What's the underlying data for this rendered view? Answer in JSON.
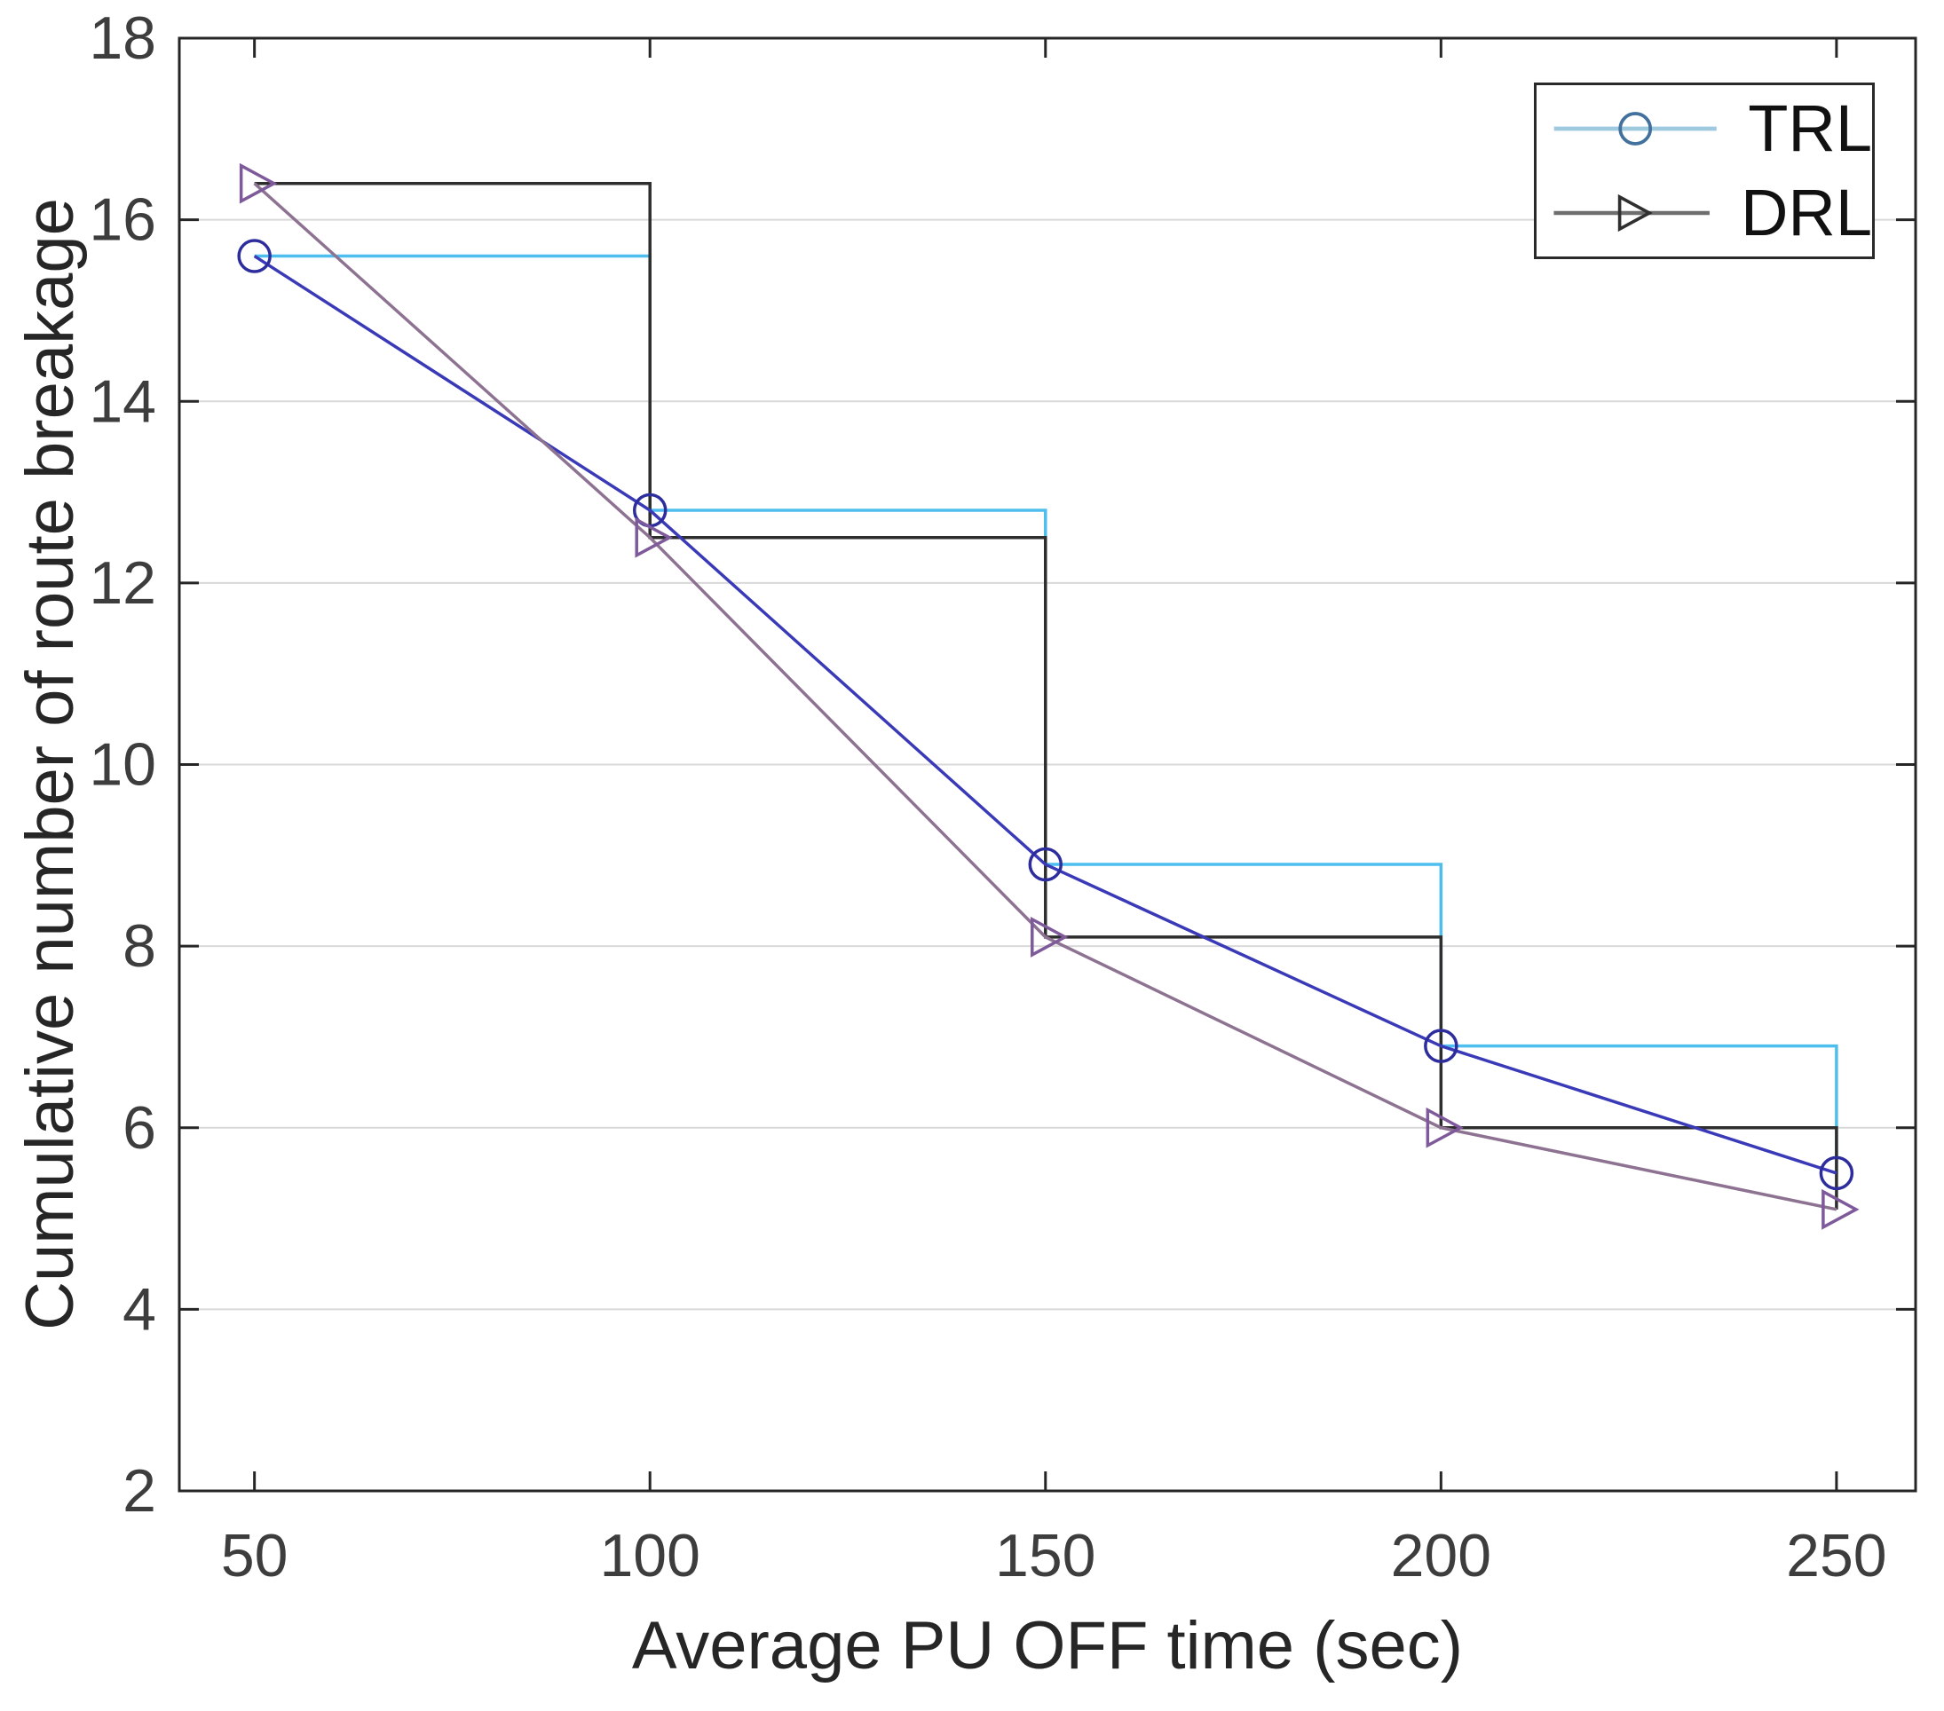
{
  "figure": {
    "background": "#ffffff",
    "axis_color": "#262626",
    "grid_color": "#d9d9d9",
    "tick_label_color": "#3d3d3d"
  },
  "legend": {
    "position": "top-right",
    "entries": [
      {
        "label": "TRL",
        "marker": "circle",
        "line_color": "#9ec9de",
        "marker_color": "#41719c"
      },
      {
        "label": "DRL",
        "marker": "triangle-right",
        "line_color": "#6e6e6e",
        "marker_color": "#2f2f2f"
      }
    ]
  },
  "chart_data": {
    "type": "line",
    "title": "",
    "xlabel": "Average PU OFF time (sec)",
    "ylabel": "Cumulative number of route breakage",
    "x": [
      50,
      100,
      150,
      200,
      250
    ],
    "x_ticks": [
      "50",
      "100",
      "150",
      "200",
      "250"
    ],
    "y_ticks": [
      "2",
      "4",
      "6",
      "8",
      "10",
      "12",
      "14",
      "16",
      "18"
    ],
    "xlim": [
      40.5,
      260
    ],
    "ylim": [
      2,
      18
    ],
    "grid": "horizontal-only",
    "legend_position": "top-right",
    "series": [
      {
        "name": "TRL",
        "marker": "circle",
        "line_color": "#3a3ab8",
        "marker_color": "#2d2d9e",
        "stair_color": "#4dbeee",
        "values": [
          15.6,
          12.8,
          8.9,
          6.9,
          5.5
        ]
      },
      {
        "name": "DRL",
        "marker": "triangle-right",
        "line_color": "#8d7391",
        "marker_color": "#7e5a9b",
        "stair_color": "#2e2e2e",
        "values": [
          16.4,
          12.5,
          8.1,
          6.0,
          5.1
        ]
      }
    ]
  }
}
